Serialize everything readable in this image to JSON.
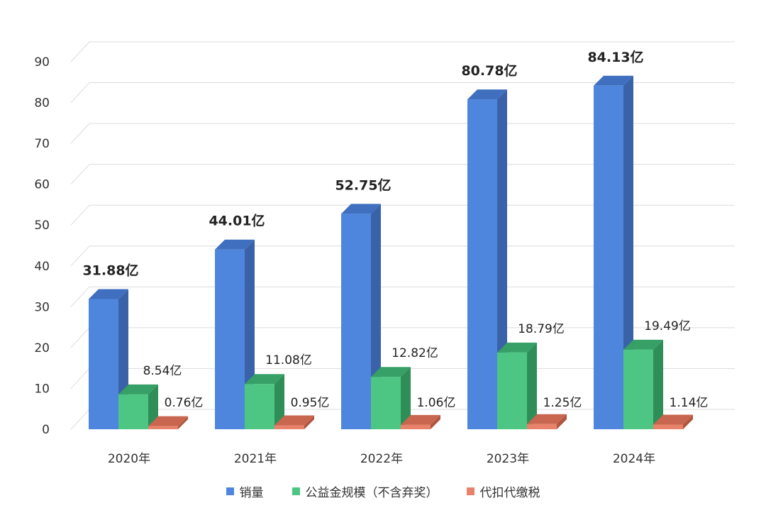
{
  "chart_data": {
    "type": "bar",
    "style": "3d-clustered-column",
    "categories": [
      "2020年",
      "2021年",
      "2022年",
      "2023年",
      "2024年"
    ],
    "series": [
      {
        "name": "销量",
        "color": "#4f86dd",
        "side_color": "#3a62a8",
        "top_color": "#3f6fbe",
        "values": [
          31.88,
          44.01,
          52.75,
          80.78,
          84.13
        ],
        "labels": [
          "31.88亿",
          "44.01亿",
          "52.75亿",
          "80.78亿",
          "84.13亿"
        ]
      },
      {
        "name": "公益金规模（不含弃奖）",
        "color": "#4cc682",
        "side_color": "#2f8e57",
        "top_color": "#36a066",
        "values": [
          8.54,
          11.08,
          12.82,
          18.79,
          19.49
        ],
        "labels": [
          "8.54亿",
          "11.08亿",
          "12.82亿",
          "18.79亿",
          "19.49亿"
        ]
      },
      {
        "name": "代扣代缴税",
        "color": "#e8826a",
        "side_color": "#b0553f",
        "top_color": "#c9664f",
        "values": [
          0.76,
          0.95,
          1.06,
          1.25,
          1.14
        ],
        "labels": [
          "0.76亿",
          "0.95亿",
          "1.06亿",
          "1.25亿",
          "1.14亿"
        ]
      }
    ],
    "y_ticks": [
      0,
      10,
      20,
      30,
      40,
      50,
      60,
      70,
      80,
      90
    ],
    "ylim": [
      0,
      90
    ],
    "grid": true,
    "legend_position": "bottom",
    "title": "",
    "xlabel": "",
    "ylabel": ""
  }
}
